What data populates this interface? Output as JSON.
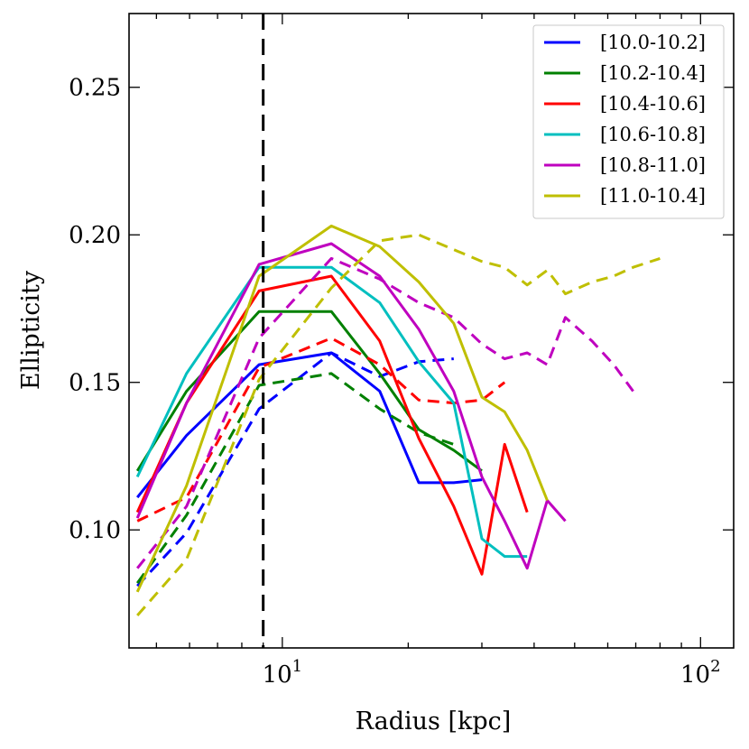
{
  "chart_data": {
    "type": "line",
    "xscale": "log",
    "xlabel": "Radius [kpc]",
    "ylabel": "Ellipticity",
    "xlim": [
      4.3,
      120
    ],
    "ylim": [
      0.06,
      0.275
    ],
    "x_ticks": [
      {
        "value": 10,
        "base": "10",
        "exp": "1"
      },
      {
        "value": 100,
        "base": "10",
        "exp": "2"
      }
    ],
    "y_ticks": [
      {
        "value": 0.1,
        "label": "0.10"
      },
      {
        "value": 0.15,
        "label": "0.15"
      },
      {
        "value": 0.2,
        "label": "0.20"
      },
      {
        "value": 0.25,
        "label": "0.25"
      }
    ],
    "vline": {
      "x": 9.0,
      "style": "dashed",
      "color": "#000000"
    },
    "legend_position": "top-right",
    "series": [
      {
        "name": "[10.0-10.2]",
        "color": "#0000ff",
        "solid": {
          "x": [
            4.5,
            5.9,
            8.8,
            13.1,
            17.1,
            21.2,
            25.7,
            30.0
          ],
          "y": [
            0.111,
            0.132,
            0.156,
            0.16,
            0.147,
            0.116,
            0.116,
            0.117
          ]
        },
        "dashed": {
          "x": [
            4.5,
            5.9,
            8.8,
            13.1,
            17.1,
            21.2,
            25.7
          ],
          "y": [
            0.081,
            0.099,
            0.141,
            0.16,
            0.152,
            0.157,
            0.158
          ]
        }
      },
      {
        "name": "[10.2-10.4]",
        "color": "#008000",
        "solid": {
          "x": [
            4.5,
            5.9,
            8.8,
            13.1,
            17.1,
            21.2,
            25.7,
            30.0
          ],
          "y": [
            0.12,
            0.147,
            0.174,
            0.174,
            0.153,
            0.134,
            0.127,
            0.12
          ]
        },
        "dashed": {
          "x": [
            4.5,
            5.9,
            8.8,
            13.1,
            17.1,
            21.2,
            25.7
          ],
          "y": [
            0.082,
            0.105,
            0.149,
            0.153,
            0.141,
            0.133,
            0.129
          ]
        }
      },
      {
        "name": "[10.4-10.6]",
        "color": "#ff0000",
        "solid": {
          "x": [
            4.5,
            5.9,
            8.8,
            13.1,
            17.1,
            21.2,
            25.7,
            30.0,
            34.0,
            38.5
          ],
          "y": [
            0.106,
            0.143,
            0.181,
            0.186,
            0.164,
            0.131,
            0.108,
            0.085,
            0.129,
            0.106
          ]
        },
        "dashed": {
          "x": [
            4.5,
            5.9,
            8.8,
            13.1,
            17.1,
            21.2,
            25.7,
            30.0,
            34.0
          ],
          "y": [
            0.103,
            0.111,
            0.155,
            0.165,
            0.156,
            0.144,
            0.143,
            0.144,
            0.15
          ]
        }
      },
      {
        "name": "[10.6-10.8]",
        "color": "#00bfbf",
        "solid": {
          "x": [
            4.5,
            5.9,
            8.8,
            13.1,
            17.1,
            21.2,
            25.7,
            30.0,
            34.0,
            38.5
          ],
          "y": [
            0.118,
            0.153,
            0.189,
            0.189,
            0.177,
            0.157,
            0.143,
            0.097,
            0.091,
            0.091
          ]
        },
        "dashed": null
      },
      {
        "name": "[10.8-11.0]",
        "color": "#bf00bf",
        "solid": {
          "x": [
            4.5,
            5.9,
            8.8,
            13.1,
            17.1,
            21.2,
            25.7,
            30.0,
            34.0,
            38.5,
            43.0,
            47.5
          ],
          "y": [
            0.104,
            0.143,
            0.19,
            0.197,
            0.186,
            0.168,
            0.147,
            0.118,
            0.103,
            0.087,
            0.11,
            0.103
          ]
        },
        "dashed": {
          "x": [
            4.5,
            5.9,
            8.8,
            13.1,
            17.1,
            21.2,
            25.7,
            30.0,
            34.0,
            38.5,
            43.0,
            47.5,
            55.0,
            62.0,
            69.0
          ],
          "y": [
            0.087,
            0.108,
            0.165,
            0.192,
            0.185,
            0.177,
            0.172,
            0.163,
            0.158,
            0.16,
            0.156,
            0.172,
            0.164,
            0.156,
            0.147
          ]
        }
      },
      {
        "name": "[11.0-10.4]",
        "color": "#bfbf00",
        "solid": {
          "x": [
            4.5,
            5.9,
            8.8,
            13.1,
            17.1,
            21.2,
            25.7,
            30.0,
            34.0,
            38.5,
            43.0
          ],
          "y": [
            0.079,
            0.115,
            0.186,
            0.203,
            0.196,
            0.184,
            0.17,
            0.145,
            0.14,
            0.127,
            0.11
          ]
        },
        "dashed": {
          "x": [
            4.5,
            5.9,
            8.8,
            13.1,
            17.1,
            21.2,
            25.7,
            30.0,
            34.0,
            38.5,
            43.0,
            47.5,
            55.0,
            62.0,
            69.0,
            80.0
          ],
          "y": [
            0.071,
            0.09,
            0.151,
            0.182,
            0.198,
            0.2,
            0.195,
            0.191,
            0.189,
            0.183,
            0.188,
            0.18,
            0.184,
            0.186,
            0.189,
            0.192
          ]
        }
      }
    ]
  }
}
